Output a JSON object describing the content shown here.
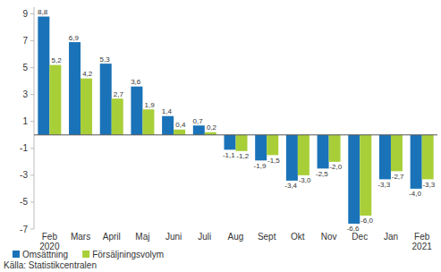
{
  "chart_data": {
    "type": "bar",
    "categories": [
      "Feb\n2020",
      "Mars",
      "April",
      "Maj",
      "Juni",
      "Juli",
      "Aug",
      "Sept",
      "Okt",
      "Nov",
      "Dec",
      "Jan",
      "Feb\n2021"
    ],
    "series": [
      {
        "name": "Omsättning",
        "color": "#1a73b8",
        "values": [
          8.8,
          6.9,
          5.3,
          3.6,
          1.4,
          0.7,
          -1.1,
          -1.9,
          -3.4,
          -2.5,
          -6.6,
          -3.3,
          -4.0
        ],
        "value_labels": [
          "8,8",
          "6,9",
          "5,3",
          "3,6",
          "1,4",
          "0,7",
          "-1,1",
          "-1,9",
          "-3,4",
          "-2,5",
          "-6,6",
          "-3,3",
          "-4,0"
        ]
      },
      {
        "name": "Försäljningsvolym",
        "color": "#a8cf38",
        "values": [
          5.2,
          4.2,
          2.7,
          1.9,
          0.4,
          0.2,
          -1.2,
          -1.5,
          -3.0,
          -2.0,
          -6.0,
          -2.7,
          -3.3
        ],
        "value_labels": [
          "5,2",
          "4,2",
          "2,7",
          "1,9",
          "0,4",
          "0,2",
          "-1,2",
          "-1,5",
          "-3,0",
          "-2,0",
          "-6,0",
          "-2,7",
          "-3,3"
        ]
      }
    ],
    "ylim": [
      -7,
      9.5
    ],
    "yticks": [
      -7,
      -5,
      -3,
      -1,
      1,
      3,
      5,
      7,
      9
    ],
    "grid": false,
    "legend": "bottom-left",
    "data_labels": true,
    "annotations": [
      "Källa: Statistikcentralen"
    ]
  }
}
